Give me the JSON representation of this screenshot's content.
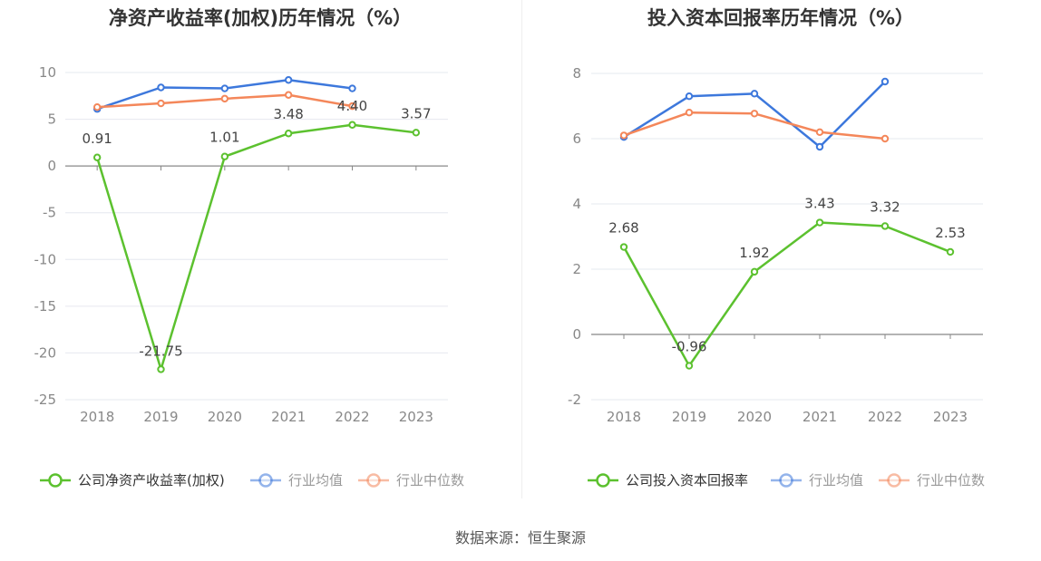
{
  "source": "数据来源：恒生聚源",
  "charts": [
    {
      "title": "净资产收益率(加权)历年情况（%）",
      "chart_data": {
        "type": "line",
        "categories": [
          "2018",
          "2019",
          "2020",
          "2021",
          "2022",
          "2023"
        ],
        "ylim": [
          -25,
          10
        ],
        "yticks": [
          10,
          5,
          0,
          -5,
          -10,
          -15,
          -20,
          -25
        ],
        "grid": true,
        "legend_position": "bottom",
        "series": [
          {
            "name": "公司净资产收益率(加权)",
            "color": "#5cc12f",
            "values": [
              0.91,
              -21.75,
              1.01,
              3.48,
              4.4,
              3.57
            ],
            "labels": [
              "0.91",
              "-21.75",
              "1.01",
              "3.48",
              "4.40",
              "3.57"
            ]
          },
          {
            "name": "行业均值",
            "color": "#3d78dc",
            "values": [
              6.1,
              8.4,
              8.3,
              9.2,
              8.3,
              null
            ]
          },
          {
            "name": "行业中位数",
            "color": "#f4875a",
            "values": [
              6.3,
              6.7,
              7.2,
              7.6,
              6.4,
              null
            ]
          }
        ]
      }
    },
    {
      "title": "投入资本回报率历年情况（%）",
      "chart_data": {
        "type": "line",
        "categories": [
          "2018",
          "2019",
          "2020",
          "2021",
          "2022",
          "2023"
        ],
        "ylim": [
          -2,
          8
        ],
        "yticks": [
          8,
          6,
          4,
          2,
          0,
          -2
        ],
        "grid": true,
        "legend_position": "bottom",
        "series": [
          {
            "name": "公司投入资本回报率",
            "color": "#5cc12f",
            "values": [
              2.68,
              -0.96,
              1.92,
              3.43,
              3.32,
              2.53
            ],
            "labels": [
              "2.68",
              "-0.96",
              "1.92",
              "3.43",
              "3.32",
              "2.53"
            ]
          },
          {
            "name": "行业均值",
            "color": "#3d78dc",
            "values": [
              6.05,
              7.3,
              7.38,
              5.75,
              7.75,
              null
            ]
          },
          {
            "name": "行业中位数",
            "color": "#f4875a",
            "values": [
              6.1,
              6.8,
              6.77,
              6.2,
              6.0,
              null
            ]
          }
        ]
      }
    }
  ]
}
